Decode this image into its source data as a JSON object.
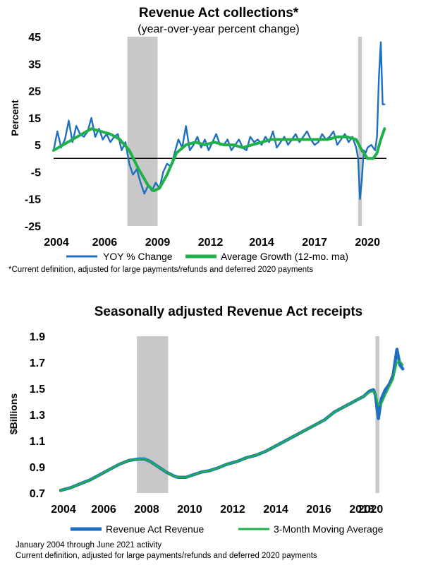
{
  "chart_data": [
    {
      "type": "line",
      "title": "Revenue Act collections*",
      "subtitle": "(year-over-year percent change)",
      "ylabel": "Percent",
      "xlabel": "",
      "x_tick_labels": [
        "2004",
        "2006",
        "2009",
        "2012",
        "2014",
        "2017",
        "2020"
      ],
      "y_tick_labels": [
        "45",
        "35",
        "25",
        "15",
        "5",
        "-5",
        "-15",
        "-25"
      ],
      "ylim": [
        -25,
        45
      ],
      "xlim": [
        2004.0,
        2021.6
      ],
      "zero_line": true,
      "recession_shading": [
        [
          2007.9,
          2009.5
        ],
        [
          2020.1,
          2020.3
        ]
      ],
      "legend_position": "bottom",
      "series": [
        {
          "name": "YOY % Change",
          "color": "#1f6fc0",
          "x": [
            2004.0,
            2004.2,
            2004.4,
            2004.6,
            2004.8,
            2005.0,
            2005.2,
            2005.4,
            2005.6,
            2005.8,
            2006.0,
            2006.2,
            2006.4,
            2006.6,
            2006.8,
            2007.0,
            2007.2,
            2007.4,
            2007.6,
            2007.8,
            2008.0,
            2008.2,
            2008.4,
            2008.6,
            2008.8,
            2009.0,
            2009.2,
            2009.4,
            2009.6,
            2009.8,
            2010.0,
            2010.2,
            2010.4,
            2010.6,
            2010.8,
            2011.0,
            2011.2,
            2011.4,
            2011.6,
            2011.8,
            2012.0,
            2012.2,
            2012.4,
            2012.6,
            2012.8,
            2013.0,
            2013.2,
            2013.4,
            2013.6,
            2013.8,
            2014.0,
            2014.2,
            2014.4,
            2014.6,
            2014.8,
            2015.0,
            2015.2,
            2015.4,
            2015.6,
            2015.8,
            2016.0,
            2016.2,
            2016.4,
            2016.6,
            2016.8,
            2017.0,
            2017.2,
            2017.4,
            2017.6,
            2017.8,
            2018.0,
            2018.2,
            2018.4,
            2018.6,
            2018.8,
            2019.0,
            2019.2,
            2019.4,
            2019.6,
            2019.8,
            2020.0,
            2020.1,
            2020.2,
            2020.3,
            2020.4,
            2020.5,
            2020.6,
            2020.8,
            2021.0,
            2021.1,
            2021.2,
            2021.3,
            2021.4,
            2021.5
          ],
          "values": [
            3,
            10,
            4,
            7,
            14,
            6,
            12,
            9,
            8,
            10,
            15,
            8,
            11,
            7,
            9,
            6,
            8,
            9,
            3,
            6,
            -2,
            -6,
            -4,
            -9,
            -13,
            -10,
            -12,
            -9,
            -11,
            -5,
            -2,
            -3,
            2,
            7,
            4,
            12,
            3,
            5,
            8,
            4,
            7,
            3,
            6,
            9,
            5,
            5,
            7,
            3,
            5,
            7,
            4,
            3,
            8,
            6,
            7,
            5,
            8,
            6,
            10,
            4,
            6,
            8,
            5,
            7,
            9,
            6,
            8,
            10,
            7,
            5,
            6,
            9,
            7,
            8,
            10,
            5,
            7,
            9,
            6,
            8,
            4,
            0,
            -15,
            -8,
            3,
            2,
            4,
            5,
            3,
            8,
            30,
            43,
            20,
            20
          ]
        },
        {
          "name": "Average Growth (12-mo. ma)",
          "color": "#1fb04a",
          "x": [
            2004.0,
            2004.5,
            2005.0,
            2005.5,
            2006.0,
            2006.5,
            2007.0,
            2007.5,
            2008.0,
            2008.5,
            2009.0,
            2009.3,
            2009.6,
            2010.0,
            2010.5,
            2011.0,
            2011.5,
            2012.0,
            2012.5,
            2013.0,
            2013.5,
            2014.0,
            2014.5,
            2015.0,
            2015.5,
            2016.0,
            2016.5,
            2017.0,
            2017.5,
            2018.0,
            2018.5,
            2019.0,
            2019.5,
            2020.0,
            2020.3,
            2020.6,
            2020.9,
            2021.1,
            2021.3,
            2021.5
          ],
          "values": [
            3,
            5,
            7,
            9,
            11,
            10,
            9,
            7,
            3,
            -4,
            -10,
            -12,
            -11,
            -6,
            2,
            5,
            6,
            5,
            6,
            5,
            5,
            4,
            5,
            6,
            7,
            7,
            7,
            7,
            7,
            7,
            7,
            8,
            8,
            7,
            3,
            0,
            0,
            2,
            7,
            11
          ]
        }
      ]
    },
    {
      "type": "line",
      "title": "Seasonally adjusted Revenue Act receipts",
      "ylabel": "$Billions",
      "xlabel": "",
      "x_tick_labels": [
        "2004",
        "2006",
        "2008",
        "2010",
        "2012",
        "2014",
        "2016",
        "2018",
        "2020"
      ],
      "y_tick_labels": [
        "1.9",
        "1.7",
        "1.5",
        "1.3",
        "1.1",
        "0.9",
        "0.7"
      ],
      "ylim": [
        0.7,
        1.9
      ],
      "xlim": [
        2004.0,
        2021.6
      ],
      "recession_shading": [
        [
          2007.9,
          2009.5
        ],
        [
          2020.1,
          2020.3
        ]
      ],
      "legend_position": "bottom",
      "series": [
        {
          "name": "Revenue Act Revenue",
          "color": "#1f6fc0",
          "x": [
            2004.0,
            2004.5,
            2005.0,
            2005.5,
            2006.0,
            2006.5,
            2007.0,
            2007.5,
            2008.0,
            2008.3,
            2008.6,
            2009.0,
            2009.4,
            2009.8,
            2010.0,
            2010.4,
            2010.8,
            2011.2,
            2011.6,
            2012.0,
            2012.5,
            2013.0,
            2013.5,
            2014.0,
            2014.5,
            2015.0,
            2015.5,
            2016.0,
            2016.5,
            2017.0,
            2017.5,
            2018.0,
            2018.5,
            2019.0,
            2019.5,
            2019.8,
            2020.0,
            2020.1,
            2020.25,
            2020.4,
            2020.6,
            2020.8,
            2021.0,
            2021.2,
            2021.35,
            2021.5
          ],
          "values": [
            0.72,
            0.74,
            0.77,
            0.8,
            0.84,
            0.88,
            0.92,
            0.95,
            0.96,
            0.96,
            0.94,
            0.9,
            0.86,
            0.83,
            0.82,
            0.82,
            0.84,
            0.86,
            0.87,
            0.89,
            0.92,
            0.94,
            0.97,
            0.99,
            1.02,
            1.06,
            1.1,
            1.14,
            1.18,
            1.22,
            1.26,
            1.32,
            1.36,
            1.4,
            1.44,
            1.48,
            1.49,
            1.45,
            1.27,
            1.42,
            1.49,
            1.53,
            1.6,
            1.8,
            1.68,
            1.65
          ]
        },
        {
          "name": "3-Month Moving Average",
          "color": "#1fb04a",
          "x": [
            2004.0,
            2004.5,
            2005.0,
            2005.5,
            2006.0,
            2006.5,
            2007.0,
            2007.5,
            2008.0,
            2008.3,
            2008.6,
            2009.0,
            2009.4,
            2009.8,
            2010.0,
            2010.4,
            2010.8,
            2011.2,
            2011.6,
            2012.0,
            2012.5,
            2013.0,
            2013.5,
            2014.0,
            2014.5,
            2015.0,
            2015.5,
            2016.0,
            2016.5,
            2017.0,
            2017.5,
            2018.0,
            2018.5,
            2019.0,
            2019.5,
            2019.8,
            2020.0,
            2020.1,
            2020.25,
            2020.4,
            2020.6,
            2020.8,
            2021.0,
            2021.2,
            2021.35,
            2021.5
          ],
          "values": [
            0.72,
            0.74,
            0.77,
            0.8,
            0.84,
            0.88,
            0.92,
            0.95,
            0.96,
            0.96,
            0.94,
            0.9,
            0.86,
            0.83,
            0.82,
            0.82,
            0.84,
            0.86,
            0.87,
            0.89,
            0.92,
            0.94,
            0.97,
            0.99,
            1.02,
            1.06,
            1.1,
            1.14,
            1.18,
            1.22,
            1.26,
            1.32,
            1.36,
            1.4,
            1.44,
            1.47,
            1.48,
            1.46,
            1.37,
            1.38,
            1.45,
            1.51,
            1.57,
            1.7,
            1.71,
            1.68
          ]
        }
      ]
    }
  ],
  "footnotes": {
    "top": "*Current definition, adjusted for large payments/refunds and deferred 2020 payments",
    "bottom_line1": "January 2004 through June 2021 activity",
    "bottom_line2": "Current definition, adjusted for large payments/refunds and deferred 2020 payments"
  }
}
